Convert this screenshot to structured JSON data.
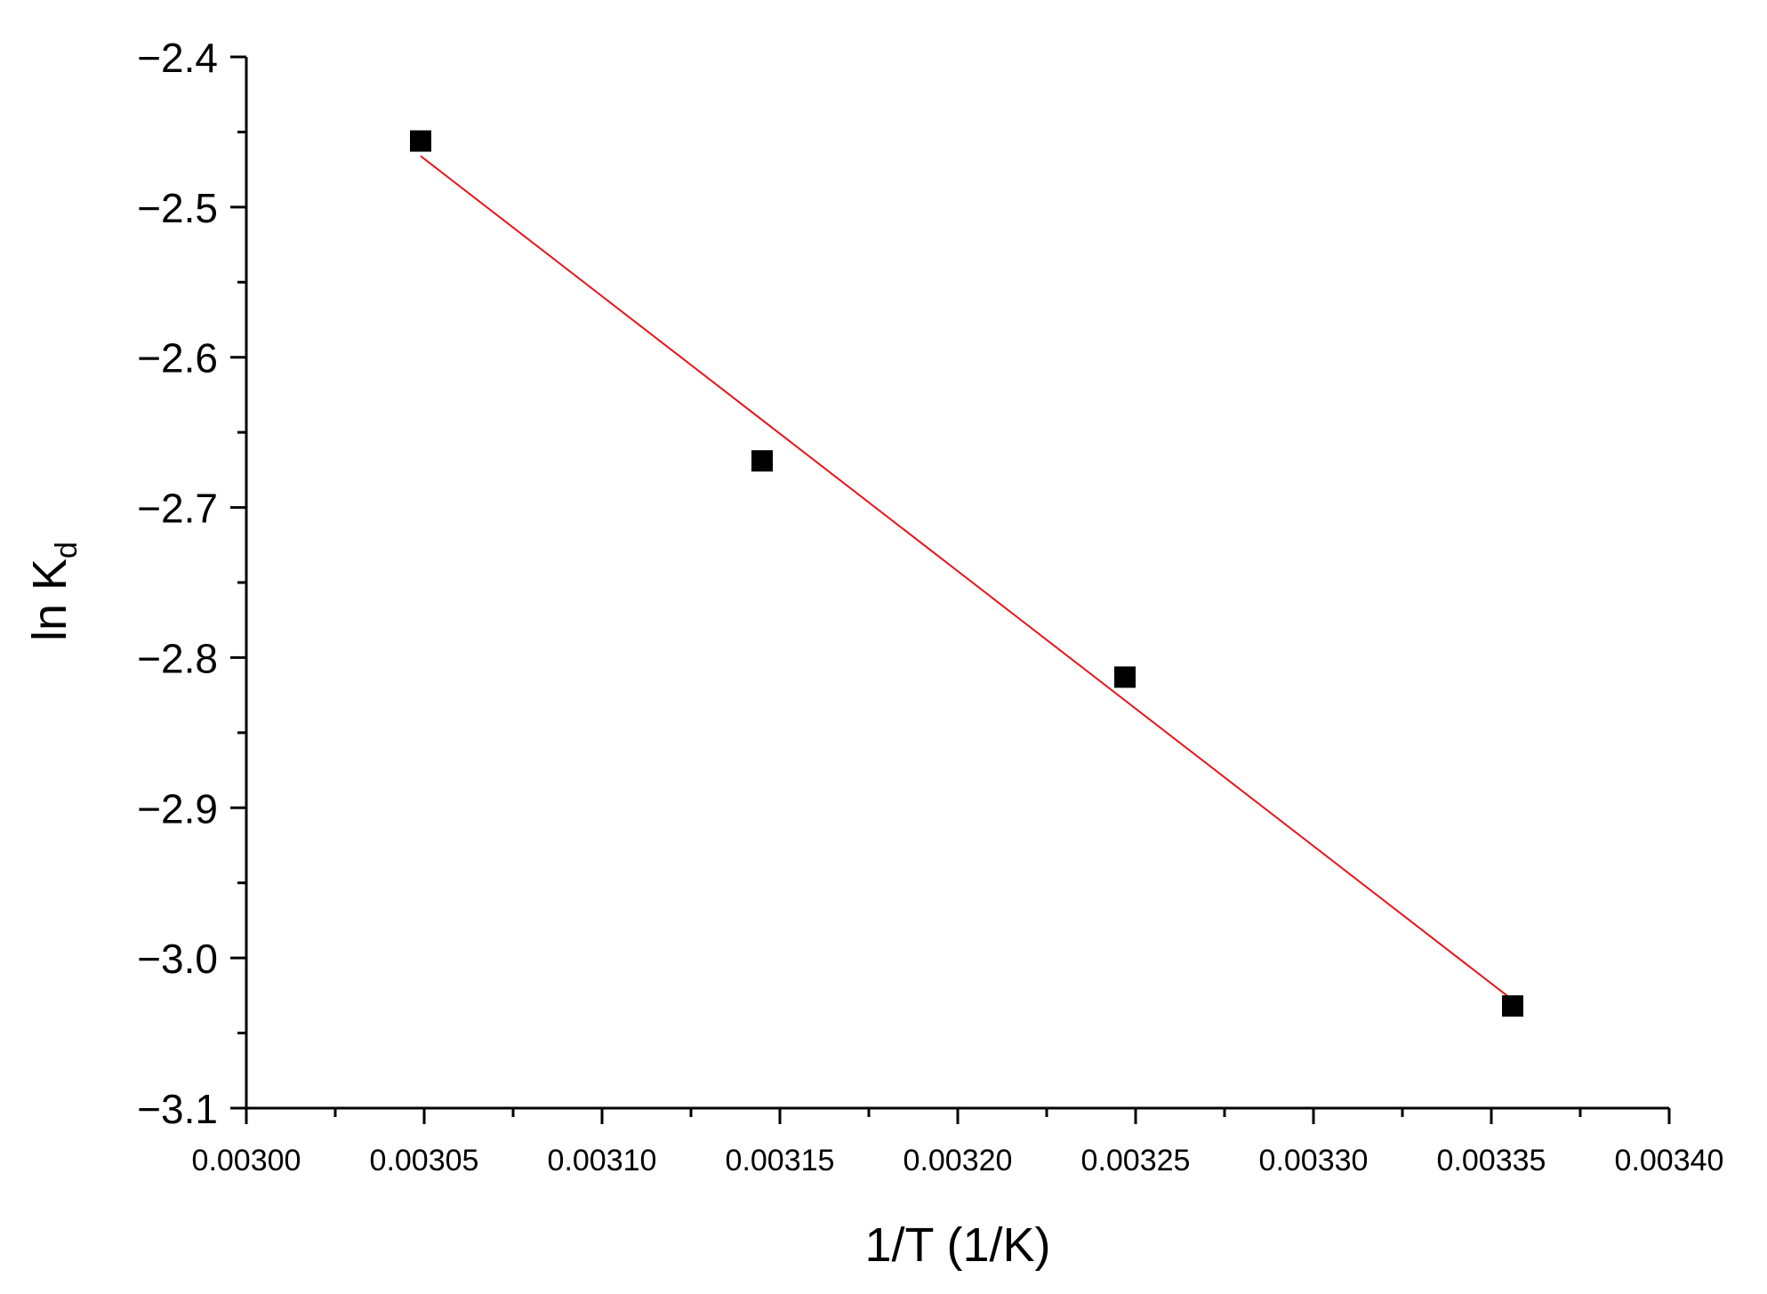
{
  "chart_data": {
    "type": "scatter",
    "xlabel": "1/T (1/K)",
    "ylabel": {
      "main": "ln K",
      "subscript": "d"
    },
    "xlim": [
      0.003,
      0.0034
    ],
    "ylim": [
      -3.1,
      -2.4
    ],
    "x_ticks": [
      0.003,
      0.00305,
      0.0031,
      0.00315,
      0.0032,
      0.00325,
      0.0033,
      0.00335,
      0.0034
    ],
    "x_tick_labels": [
      "0.00300",
      "0.00305",
      "0.00310",
      "0.00315",
      "0.00320",
      "0.00325",
      "0.00330",
      "0.00335",
      "0.00340"
    ],
    "y_ticks": [
      -2.4,
      -2.5,
      -2.6,
      -2.7,
      -2.8,
      -2.9,
      -3.0,
      -3.1
    ],
    "y_tick_labels": [
      "−2.4",
      "−2.5",
      "−2.6",
      "−2.7",
      "−2.8",
      "−2.9",
      "−3.0",
      "−3.1"
    ],
    "series": [
      {
        "marker": "square",
        "color": "#000000",
        "points": [
          {
            "x": 0.003049,
            "y": -2.456
          },
          {
            "x": 0.003145,
            "y": -2.669
          },
          {
            "x": 0.003247,
            "y": -2.813
          },
          {
            "x": 0.003356,
            "y": -3.032
          }
        ]
      }
    ],
    "fit_line": {
      "color": "#e8141b",
      "x": [
        0.003049,
        0.003356
      ],
      "y": [
        -2.466,
        -3.028
      ]
    },
    "grid": false,
    "legend": "none"
  }
}
